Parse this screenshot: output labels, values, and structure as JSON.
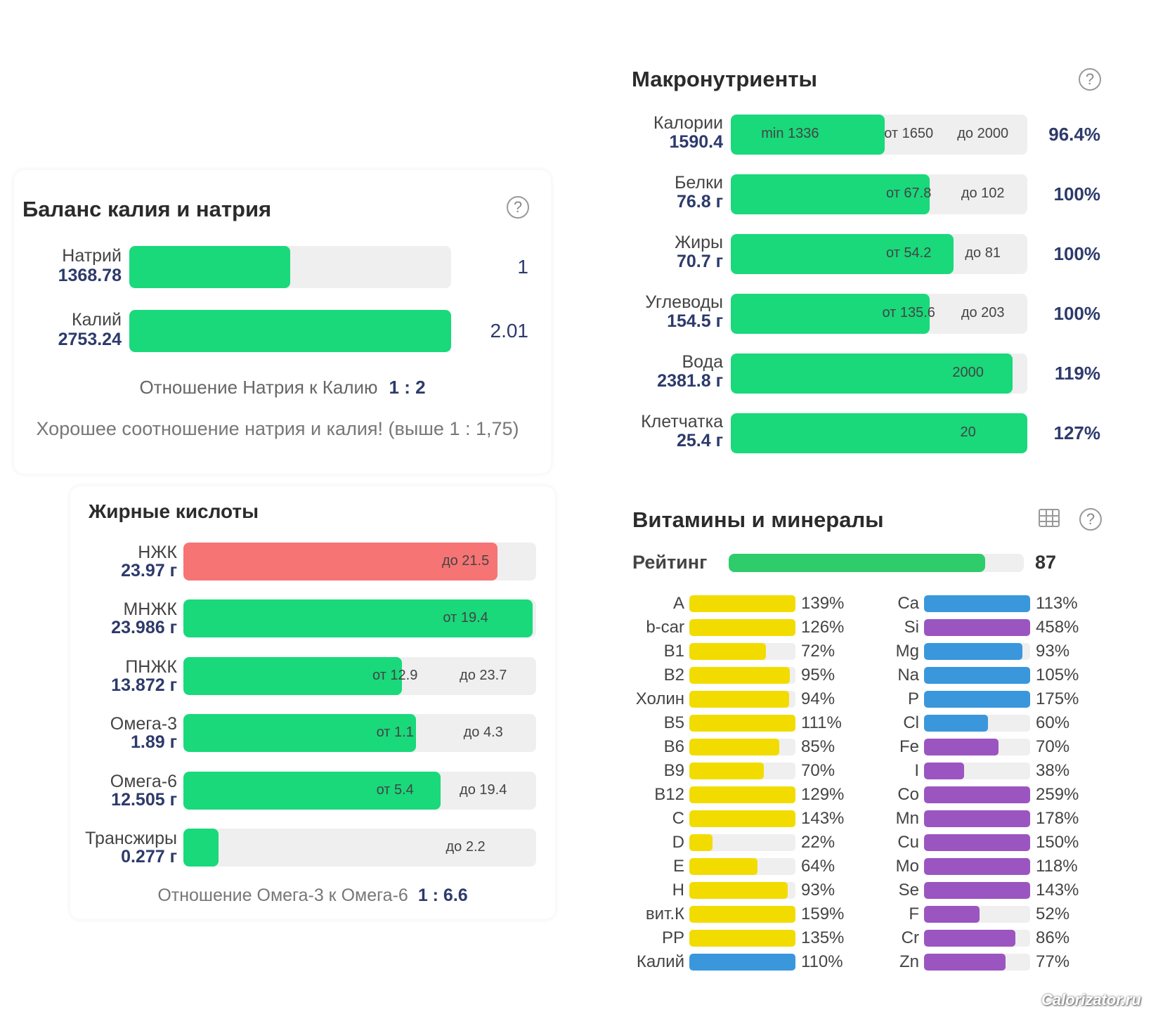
{
  "balance": {
    "title": "Баланс калия и натрия",
    "rows": [
      {
        "name": "Натрий",
        "value": "1368.78",
        "ratio": "1"
      },
      {
        "name": "Калий",
        "value": "2753.24",
        "ratio": "2.01"
      }
    ],
    "ratio_label": "Отношение Натрия к Калию",
    "ratio_value": "1 : 2",
    "note": "Хорошее соотношение натрия и калия! (выше 1 : 1,75)"
  },
  "fatty": {
    "title": "Жирные кислоты",
    "rows": [
      {
        "name": "НЖК",
        "value": "23.97 г",
        "to": "до 21.5"
      },
      {
        "name": "МНЖК",
        "value": "23.986 г",
        "from": "от 19.4"
      },
      {
        "name": "ПНЖК",
        "value": "13.872 г",
        "from": "от 12.9",
        "to": "до 23.7"
      },
      {
        "name": "Омега-3",
        "value": "1.89 г",
        "from": "от 1.1",
        "to": "до 4.3"
      },
      {
        "name": "Омега-6",
        "value": "12.505 г",
        "from": "от 5.4",
        "to": "до 19.4"
      },
      {
        "name": "Трансжиры",
        "value": "0.277 г",
        "to": "до 2.2"
      }
    ],
    "ratio_label": "Отношение Омега-3 к Омега-6",
    "ratio_value": "1 : 6.6"
  },
  "macro": {
    "title": "Макронутриенты",
    "rows": [
      {
        "name": "Калории",
        "value": "1590.4",
        "min": "min 1336",
        "from": "от 1650",
        "to": "до 2000",
        "percent": "96.4%"
      },
      {
        "name": "Белки",
        "value": "76.8 г",
        "from": "от 67.8",
        "to": "до 102",
        "percent": "100%"
      },
      {
        "name": "Жиры",
        "value": "70.7 г",
        "from": "от 54.2",
        "to": "до 81",
        "percent": "100%"
      },
      {
        "name": "Углеводы",
        "value": "154.5 г",
        "from": "от 135.6",
        "to": "до 203",
        "percent": "100%"
      },
      {
        "name": "Вода",
        "value": "2381.8 г",
        "target": "2000",
        "percent": "119%"
      },
      {
        "name": "Клетчатка",
        "value": "25.4 г",
        "target": "20",
        "percent": "127%"
      }
    ]
  },
  "vitamins": {
    "title": "Витамины и минералы",
    "rating_label": "Рейтинг",
    "rating": 87,
    "left": [
      {
        "name": "A",
        "percent": "139%",
        "color": "#f2dc00"
      },
      {
        "name": "b-car",
        "percent": "126%",
        "color": "#f2dc00"
      },
      {
        "name": "B1",
        "percent": "72%",
        "color": "#f2dc00"
      },
      {
        "name": "B2",
        "percent": "95%",
        "color": "#f2dc00"
      },
      {
        "name": "Холин",
        "percent": "94%",
        "color": "#f2dc00"
      },
      {
        "name": "B5",
        "percent": "111%",
        "color": "#f2dc00"
      },
      {
        "name": "B6",
        "percent": "85%",
        "color": "#f2dc00"
      },
      {
        "name": "B9",
        "percent": "70%",
        "color": "#f2dc00"
      },
      {
        "name": "B12",
        "percent": "129%",
        "color": "#f2dc00"
      },
      {
        "name": "C",
        "percent": "143%",
        "color": "#f2dc00"
      },
      {
        "name": "D",
        "percent": "22%",
        "color": "#f2dc00"
      },
      {
        "name": "E",
        "percent": "64%",
        "color": "#f2dc00"
      },
      {
        "name": "H",
        "percent": "93%",
        "color": "#f2dc00"
      },
      {
        "name": "вит.К",
        "percent": "159%",
        "color": "#f2dc00"
      },
      {
        "name": "PP",
        "percent": "135%",
        "color": "#f2dc00"
      },
      {
        "name": "Калий",
        "percent": "110%",
        "color": "#3a97dc"
      }
    ],
    "right": [
      {
        "name": "Ca",
        "percent": "113%",
        "color": "#3a97dc"
      },
      {
        "name": "Si",
        "percent": "458%",
        "color": "#9b55c0"
      },
      {
        "name": "Mg",
        "percent": "93%",
        "color": "#3a97dc"
      },
      {
        "name": "Na",
        "percent": "105%",
        "color": "#3a97dc"
      },
      {
        "name": "P",
        "percent": "175%",
        "color": "#3a97dc"
      },
      {
        "name": "Cl",
        "percent": "60%",
        "color": "#3a97dc"
      },
      {
        "name": "Fe",
        "percent": "70%",
        "color": "#9b55c0"
      },
      {
        "name": "I",
        "percent": "38%",
        "color": "#9b55c0"
      },
      {
        "name": "Co",
        "percent": "259%",
        "color": "#9b55c0"
      },
      {
        "name": "Mn",
        "percent": "178%",
        "color": "#9b55c0"
      },
      {
        "name": "Cu",
        "percent": "150%",
        "color": "#9b55c0"
      },
      {
        "name": "Mo",
        "percent": "118%",
        "color": "#9b55c0"
      },
      {
        "name": "Se",
        "percent": "143%",
        "color": "#9b55c0"
      },
      {
        "name": "F",
        "percent": "52%",
        "color": "#9b55c0"
      },
      {
        "name": "Cr",
        "percent": "86%",
        "color": "#9b55c0"
      },
      {
        "name": "Zn",
        "percent": "77%",
        "color": "#9b55c0"
      }
    ]
  },
  "watermark": "Calorizator.ru"
}
